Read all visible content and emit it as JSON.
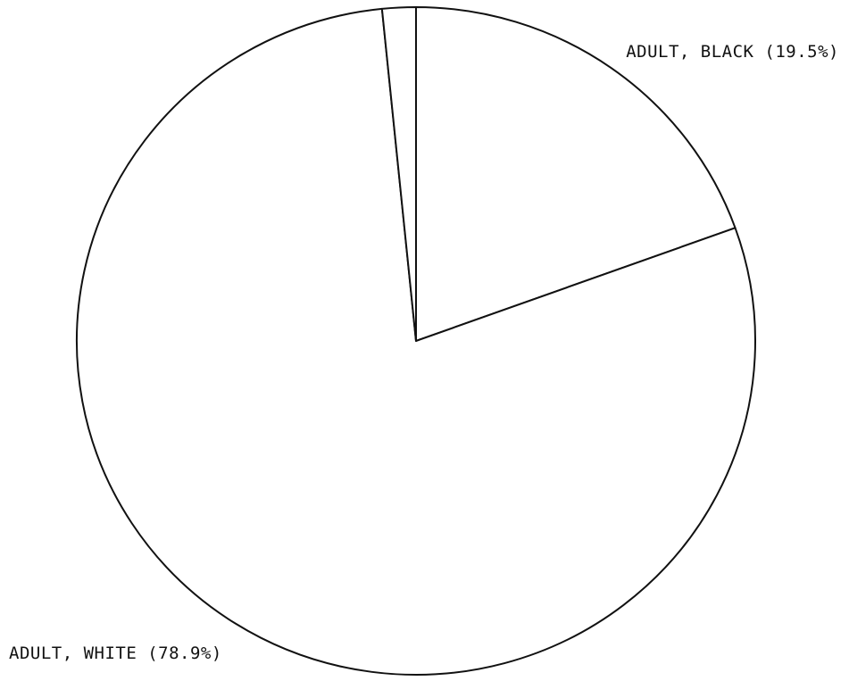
{
  "chart_data": {
    "type": "pie",
    "title": "",
    "slices": [
      {
        "label": "ADULT, BLACK (19.5%)",
        "value": 19.5,
        "label_side": "top-right"
      },
      {
        "label": "ADULT, WHITE (78.9%)",
        "value": 78.9,
        "label_side": "bottom-left"
      },
      {
        "label": "",
        "value": 1.6
      }
    ],
    "start_angle_deg": 0,
    "direction": "clockwise",
    "colors": {
      "fill": "#ffffff",
      "stroke": "#111111"
    }
  }
}
